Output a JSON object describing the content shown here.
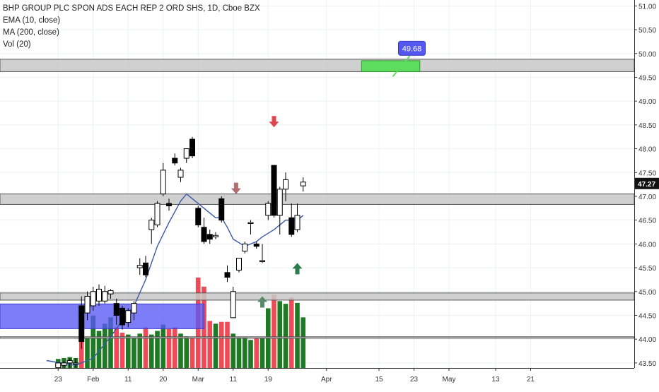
{
  "legend": {
    "title": "BHP GROUP PLC SPON ADS EACH REP 2 ORD SHS, 1D, Cboe BZX",
    "ema": "EMA (10, close)",
    "ma": "MA (200, close)",
    "vol": "Vol (20)"
  },
  "colors": {
    "up_volume": "#1e7b24",
    "down_volume": "#ef4a55",
    "ema_line": "#3a5aa8",
    "zone_fill": "#c8c8c8",
    "blue_zone": "#5858f5",
    "green_box": "#5ddc5d",
    "price_label_bg": "#5458f0",
    "price_tag_bg": "#111111",
    "arrow_down": "#e0484e",
    "arrow_up": "#2b7d4e",
    "arrow_down_muted": "#b07070",
    "arrow_up_muted": "#5a8a6a"
  },
  "chart_data": {
    "type": "candlestick",
    "symbol": "BHP GROUP PLC SPON ADS EACH REP 2 ORD SHS",
    "interval": "1D",
    "exchange": "Cboe BZX",
    "ylim": [
      43.5,
      51.05
    ],
    "y_ticks": [
      "43.50",
      "44.00",
      "44.50",
      "45.00",
      "45.50",
      "46.00",
      "46.50",
      "47.00",
      "47.50",
      "48.00",
      "48.50",
      "49.00",
      "49.50",
      "50.00",
      "50.50",
      "51.00"
    ],
    "x_tick_labels": [
      {
        "label": "23",
        "idx": -9
      },
      {
        "label": "Feb",
        "idx": -3
      },
      {
        "label": "11",
        "idx": 3
      },
      {
        "label": "20",
        "idx": 9
      },
      {
        "label": "Mar",
        "idx": 15
      },
      {
        "label": "11",
        "idx": 21
      },
      {
        "label": "19",
        "idx": 27
      },
      {
        "label": "Apr",
        "idx": 37
      },
      {
        "label": "15",
        "idx": 46
      },
      {
        "label": "23",
        "idx": 52
      },
      {
        "label": "May",
        "idx": 58
      },
      {
        "label": "13",
        "idx": 66
      },
      {
        "label": "21",
        "idx": 72
      }
    ],
    "candles": [
      {
        "idx": -9,
        "o": 43.4,
        "h": 43.5,
        "l": 43.3,
        "c": 43.5,
        "v": 0.1
      },
      {
        "idx": -8,
        "o": 43.45,
        "h": 43.55,
        "l": 43.35,
        "c": 43.5,
        "v": 0.11
      },
      {
        "idx": -7,
        "o": 43.5,
        "h": 43.6,
        "l": 43.4,
        "c": 43.55,
        "v": 0.12
      },
      {
        "idx": -6,
        "o": 43.5,
        "h": 43.6,
        "l": 43.4,
        "c": 43.5,
        "v": 0.11
      },
      {
        "idx": -5,
        "o": 44.7,
        "h": 44.9,
        "l": 43.8,
        "c": 43.95,
        "v": 0.62
      },
      {
        "idx": -4,
        "o": 44.55,
        "h": 45.0,
        "l": 44.4,
        "c": 44.9,
        "v": 0.33
      },
      {
        "idx": -3,
        "o": 44.7,
        "h": 45.1,
        "l": 44.6,
        "c": 45.0,
        "v": 0.58
      },
      {
        "idx": -2,
        "o": 44.8,
        "h": 45.15,
        "l": 44.7,
        "c": 45.05,
        "v": 0.41
      },
      {
        "idx": -1,
        "o": 44.8,
        "h": 45.12,
        "l": 44.75,
        "c": 45.0,
        "v": 0.49
      },
      {
        "idx": 0,
        "o": 44.95,
        "h": 45.05,
        "l": 44.85,
        "c": 45.02,
        "v": 0.56
      },
      {
        "idx": 1,
        "o": 44.75,
        "h": 44.85,
        "l": 44.3,
        "c": 44.5,
        "v": 0.45
      },
      {
        "idx": 2,
        "o": 44.65,
        "h": 44.7,
        "l": 44.2,
        "c": 44.3,
        "v": 0.39
      },
      {
        "idx": 3,
        "o": 44.35,
        "h": 44.65,
        "l": 44.25,
        "c": 44.6,
        "v": 0.37
      },
      {
        "idx": 4,
        "o": 44.55,
        "h": 44.8,
        "l": 44.4,
        "c": 44.75,
        "v": 0.33
      },
      {
        "idx": 5,
        "o": 45.5,
        "h": 45.7,
        "l": 45.35,
        "c": 45.55,
        "v": 0.38
      },
      {
        "idx": 6,
        "o": 45.6,
        "h": 45.75,
        "l": 45.3,
        "c": 45.35,
        "v": 0.45
      },
      {
        "idx": 7,
        "o": 46.3,
        "h": 46.55,
        "l": 46.0,
        "c": 46.5,
        "v": 0.37
      },
      {
        "idx": 8,
        "o": 46.4,
        "h": 46.9,
        "l": 46.35,
        "c": 46.85,
        "v": 0.41
      },
      {
        "idx": 9,
        "o": 47.05,
        "h": 47.7,
        "l": 47.0,
        "c": 47.55,
        "v": 0.48
      },
      {
        "idx": 10,
        "o": 46.85,
        "h": 46.95,
        "l": 46.7,
        "c": 46.8,
        "v": 0.43
      },
      {
        "idx": 11,
        "o": 47.8,
        "h": 47.9,
        "l": 47.65,
        "c": 47.7,
        "v": 0.45
      },
      {
        "idx": 12,
        "o": 47.4,
        "h": 47.6,
        "l": 47.3,
        "c": 47.55,
        "v": 0.38
      },
      {
        "idx": 13,
        "o": 47.8,
        "h": 48.0,
        "l": 47.7,
        "c": 48.0,
        "v": 0.35
      },
      {
        "idx": 14,
        "o": 48.2,
        "h": 48.25,
        "l": 47.8,
        "c": 47.85,
        "v": 0.34
      },
      {
        "idx": 15,
        "o": 46.75,
        "h": 46.8,
        "l": 46.35,
        "c": 46.4,
        "v": 1.0
      },
      {
        "idx": 16,
        "o": 46.35,
        "h": 46.55,
        "l": 46.0,
        "c": 46.05,
        "v": 0.9
      },
      {
        "idx": 17,
        "o": 46.2,
        "h": 46.3,
        "l": 46.0,
        "c": 46.1,
        "v": 0.52
      },
      {
        "idx": 18,
        "o": 46.15,
        "h": 46.25,
        "l": 46.1,
        "c": 46.18,
        "v": 0.49
      },
      {
        "idx": 19,
        "o": 46.95,
        "h": 47.0,
        "l": 46.45,
        "c": 46.5,
        "v": 0.51
      },
      {
        "idx": 20,
        "o": 45.4,
        "h": 45.55,
        "l": 45.2,
        "c": 45.3,
        "v": 0.51
      },
      {
        "idx": 21,
        "o": 44.45,
        "h": 45.1,
        "l": 44.45,
        "c": 45.0,
        "v": 0.38
      },
      {
        "idx": 22,
        "o": 45.45,
        "h": 45.7,
        "l": 45.4,
        "c": 45.7,
        "v": 0.34
      },
      {
        "idx": 23,
        "o": 45.85,
        "h": 46.05,
        "l": 45.8,
        "c": 46.0,
        "v": 0.34
      },
      {
        "idx": 24,
        "o": 46.45,
        "h": 46.5,
        "l": 46.2,
        "c": 46.45,
        "v": 0.31
      },
      {
        "idx": 25,
        "o": 46.0,
        "h": 46.05,
        "l": 45.9,
        "c": 45.95,
        "v": 0.33
      },
      {
        "idx": 26,
        "o": 45.65,
        "h": 46.0,
        "l": 45.6,
        "c": 45.65,
        "v": 0.33
      },
      {
        "idx": 27,
        "o": 46.6,
        "h": 46.9,
        "l": 46.5,
        "c": 46.85,
        "v": 0.66
      },
      {
        "idx": 28,
        "o": 47.65,
        "h": 47.65,
        "l": 46.55,
        "c": 46.6,
        "v": 0.81
      },
      {
        "idx": 29,
        "o": 46.6,
        "h": 47.2,
        "l": 46.2,
        "c": 47.15,
        "v": 0.74
      },
      {
        "idx": 30,
        "o": 47.15,
        "h": 47.5,
        "l": 46.9,
        "c": 47.35,
        "v": 0.71
      },
      {
        "idx": 31,
        "o": 46.55,
        "h": 46.85,
        "l": 46.15,
        "c": 46.2,
        "v": 0.78
      },
      {
        "idx": 32,
        "o": 46.3,
        "h": 46.85,
        "l": 46.25,
        "c": 46.6,
        "v": 0.72
      },
      {
        "idx": 33,
        "o": 47.22,
        "h": 47.4,
        "l": 47.1,
        "c": 47.3,
        "v": 0.56
      }
    ],
    "ema_10": [
      {
        "idx": -11,
        "v": 43.55
      },
      {
        "idx": -6,
        "v": 43.45
      },
      {
        "idx": -3,
        "v": 43.6
      },
      {
        "idx": 0,
        "v": 44.05
      },
      {
        "idx": 2,
        "v": 44.4
      },
      {
        "idx": 4,
        "v": 44.7
      },
      {
        "idx": 6,
        "v": 45.25
      },
      {
        "idx": 8,
        "v": 45.95
      },
      {
        "idx": 10,
        "v": 46.45
      },
      {
        "idx": 12,
        "v": 46.9
      },
      {
        "idx": 13,
        "v": 47.05
      },
      {
        "idx": 14,
        "v": 46.95
      },
      {
        "idx": 16,
        "v": 46.75
      },
      {
        "idx": 18,
        "v": 46.55
      },
      {
        "idx": 19,
        "v": 46.55
      },
      {
        "idx": 20,
        "v": 46.35
      },
      {
        "idx": 21,
        "v": 46.1
      },
      {
        "idx": 23,
        "v": 45.95
      },
      {
        "idx": 25,
        "v": 46.05
      },
      {
        "idx": 26,
        "v": 46.15
      },
      {
        "idx": 28,
        "v": 46.3
      },
      {
        "idx": 30,
        "v": 46.5
      },
      {
        "idx": 32,
        "v": 46.5
      },
      {
        "idx": 33,
        "v": 46.6
      }
    ],
    "price_zones": [
      {
        "from": 49.62,
        "to": 49.88
      },
      {
        "from": 46.83,
        "to": 47.05
      },
      {
        "from": 44.82,
        "to": 44.97
      },
      {
        "from": 44.02,
        "to": 44.05
      }
    ],
    "blue_zone": {
      "from_idx": -12,
      "to_idx": 16,
      "y_from": 44.22,
      "y_to": 44.74
    },
    "green_box": {
      "from_idx": 43,
      "to_idx": 53,
      "y_from": 49.62,
      "y_to": 49.85
    },
    "price_callout": {
      "text": "49.68",
      "idx": 52,
      "value": 49.68
    },
    "last_price": "47.27",
    "markers": [
      {
        "idx": 21.5,
        "price": 47.05,
        "dir": "down",
        "muted": true
      },
      {
        "idx": 28,
        "price": 48.45,
        "dir": "down",
        "muted": false
      },
      {
        "idx": 26,
        "price": 44.9,
        "dir": "up",
        "muted": true
      },
      {
        "idx": 32,
        "price": 45.6,
        "dir": "up",
        "muted": false
      }
    ]
  }
}
